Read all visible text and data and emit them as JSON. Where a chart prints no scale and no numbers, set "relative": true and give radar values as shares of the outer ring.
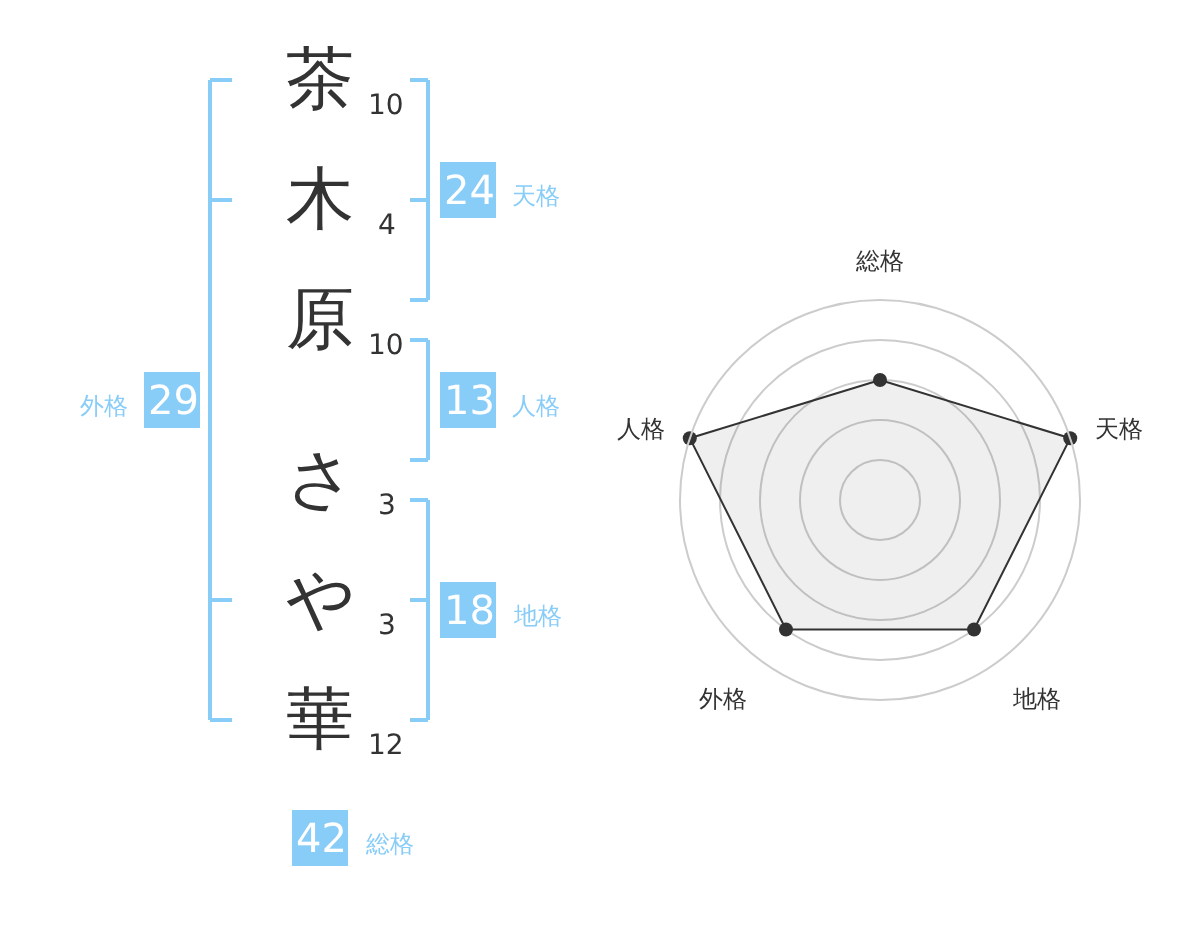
{
  "chart_data": [
    {
      "type": "other",
      "categories": [
        "茶",
        "木",
        "原",
        "さ",
        "や",
        "華"
      ],
      "values": [
        10,
        4,
        10,
        3,
        3,
        12
      ],
      "data_labels": true
    },
    {
      "type": "other",
      "categories": [
        "天格",
        "人格",
        "地格",
        "外格",
        "総格"
      ],
      "values": [
        24,
        13,
        18,
        29,
        42
      ],
      "color": "#88ccf8",
      "data_labels": true
    },
    {
      "type": "radar",
      "categories": [
        "総格",
        "天格",
        "地格",
        "外格",
        "人格"
      ],
      "relative": true,
      "grid": true,
      "marker": "circle",
      "series": [
        {
          "color": "#333333",
          "values": [
            0.6,
            1,
            0.8,
            0.8,
            1
          ]
        }
      ]
    }
  ]
}
